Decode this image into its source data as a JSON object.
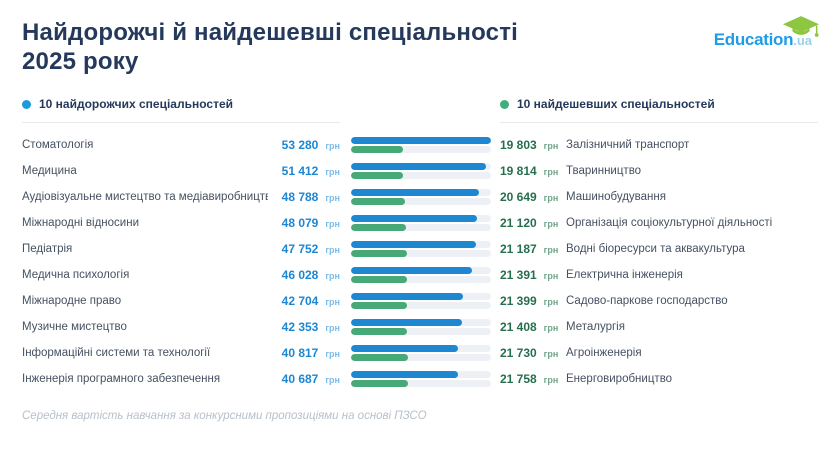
{
  "title": {
    "line1": "Найдорожчі й найдешевші спеціальності",
    "line2": "2025 року"
  },
  "logo": {
    "name": "Education",
    "tld": ".ua",
    "cap_icon": "graduation-cap-icon"
  },
  "legend": {
    "expensive": "10 найдорожчих спеціальностей",
    "cheap": "10 найдешевших спеціальностей"
  },
  "currency": "грн",
  "footnote": "Середня вартість навчання за конкурсними пропозиціями на основі ПЗСО",
  "colors": {
    "title": "#24395b",
    "accent_blue": "#1e87d2",
    "accent_green": "#47a878",
    "value_blue": "#1b87d3",
    "value_green": "#266f4e",
    "bar_track": "#edf1f6",
    "logo_blue": "#1e9ce8",
    "logo_cap_green": "#8dc63f"
  },
  "chart_data": {
    "type": "bar",
    "orientation": "horizontal",
    "title": "Найдорожчі й найдешевші спеціальності 2025 року",
    "unit": "грн",
    "max_value": 53280,
    "xlim": [
      0,
      53280
    ],
    "legend_position": "top",
    "grid": false,
    "series": [
      {
        "name": "10 найдорожчих спеціальностей",
        "color": "#1e87d2",
        "items": [
          {
            "label": "Стоматологія",
            "value": 53280,
            "display": "53 280"
          },
          {
            "label": "Медицина",
            "value": 51412,
            "display": "51 412"
          },
          {
            "label": "Аудіовізуальне мистецтво та медіавиробництво",
            "value": 48788,
            "display": "48 788"
          },
          {
            "label": "Міжнародні відносини",
            "value": 48079,
            "display": "48 079"
          },
          {
            "label": "Педіатрія",
            "value": 47752,
            "display": "47 752"
          },
          {
            "label": "Медична психологія",
            "value": 46028,
            "display": "46 028"
          },
          {
            "label": "Міжнародне право",
            "value": 42704,
            "display": "42 704"
          },
          {
            "label": "Музичне мистецтво",
            "value": 42353,
            "display": "42 353"
          },
          {
            "label": "Інформаційні системи та технології",
            "value": 40817,
            "display": "40 817"
          },
          {
            "label": "Інженерія програмного забезпечення",
            "value": 40687,
            "display": "40 687"
          }
        ]
      },
      {
        "name": "10 найдешевших спеціальностей",
        "color": "#47a878",
        "items": [
          {
            "label": "Залізничний транспорт",
            "value": 19803,
            "display": "19 803"
          },
          {
            "label": "Тваринництво",
            "value": 19814,
            "display": "19 814"
          },
          {
            "label": "Машинобудування",
            "value": 20649,
            "display": "20 649"
          },
          {
            "label": "Організація соціокультурної діяльності",
            "value": 21120,
            "display": "21 120"
          },
          {
            "label": "Водні біоресурси та аквакультура",
            "value": 21187,
            "display": "21 187"
          },
          {
            "label": "Електрична інженерія",
            "value": 21391,
            "display": "21 391"
          },
          {
            "label": "Садово-паркове господарство",
            "value": 21399,
            "display": "21 399"
          },
          {
            "label": "Металургія",
            "value": 21408,
            "display": "21 408"
          },
          {
            "label": "Агроінженерія",
            "value": 21730,
            "display": "21 730"
          },
          {
            "label": "Енерговиробництво",
            "value": 21758,
            "display": "21 758"
          }
        ]
      }
    ]
  }
}
